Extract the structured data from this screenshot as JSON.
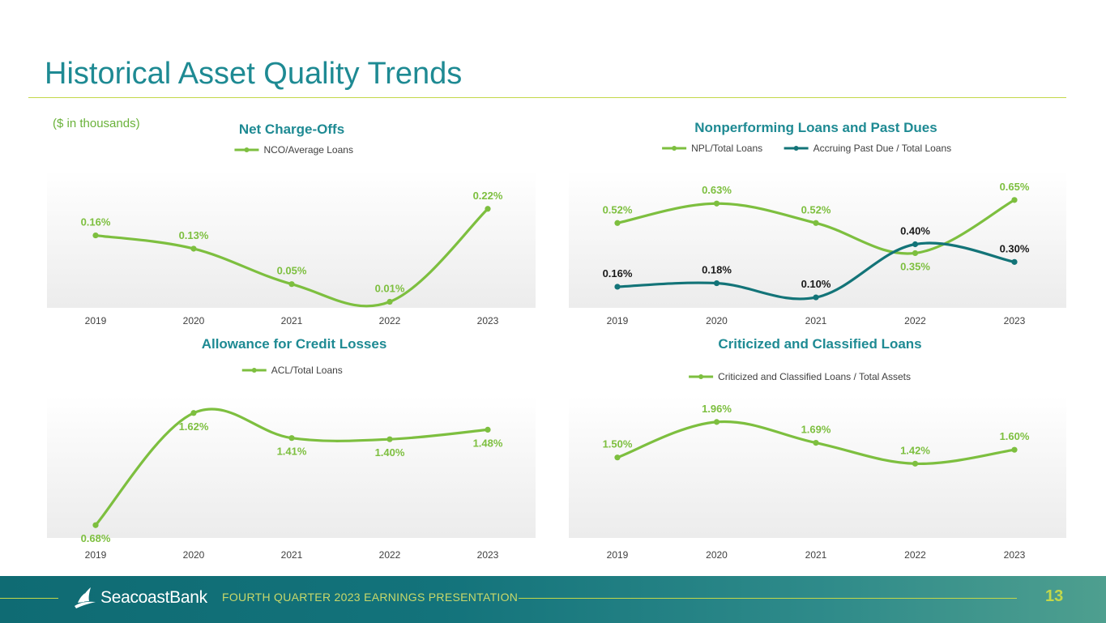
{
  "page": {
    "title": "Historical Asset Quality Trends",
    "units_note": "($ in thousands)",
    "footer_brand": "SeacoastBank",
    "footer_caption": "FOURTH QUARTER 2023 EARNINGS PRESENTATION",
    "page_number": "13"
  },
  "colors": {
    "title": "#1e8a93",
    "light_green": "#7dbf3f",
    "dark_teal": "#137478",
    "rule": "#c3d84a"
  },
  "chart_data": [
    {
      "id": "nco",
      "type": "line",
      "title": "Net Charge-Offs",
      "categories": [
        "2019",
        "2020",
        "2021",
        "2022",
        "2023"
      ],
      "ylim": [
        0.0,
        0.28
      ],
      "grid": false,
      "legend_position": "top-center",
      "series": [
        {
          "name": "NCO/Average Loans",
          "color": "#7dbf3f",
          "values": [
            0.16,
            0.13,
            0.05,
            0.01,
            0.22
          ],
          "labels": [
            "0.16%",
            "0.13%",
            "0.05%",
            "0.01%",
            "0.22%"
          ],
          "label_pos": [
            "above",
            "above",
            "above",
            "above",
            "above"
          ]
        }
      ]
    },
    {
      "id": "npl",
      "type": "line",
      "title": "Nonperforming Loans and Past Dues",
      "categories": [
        "2019",
        "2020",
        "2021",
        "2022",
        "2023"
      ],
      "ylim": [
        0.05,
        0.75
      ],
      "grid": false,
      "legend_position": "top-center",
      "series": [
        {
          "name": "NPL/Total Loans",
          "color": "#7dbf3f",
          "values": [
            0.52,
            0.63,
            0.52,
            0.35,
            0.65
          ],
          "labels": [
            "0.52%",
            "0.63%",
            "0.52%",
            "0.35%",
            "0.65%"
          ],
          "label_pos": [
            "above",
            "above",
            "above",
            "below",
            "above"
          ]
        },
        {
          "name": "Accruing Past Due / Total Loans",
          "color": "#137478",
          "values": [
            0.16,
            0.18,
            0.1,
            0.4,
            0.3
          ],
          "labels": [
            "0.16%",
            "0.18%",
            "0.10%",
            "0.40%",
            "0.30%"
          ],
          "label_pos": [
            "above",
            "above",
            "above",
            "above",
            "above"
          ]
        }
      ]
    },
    {
      "id": "acl",
      "type": "line",
      "title": "Allowance for Credit Losses",
      "categories": [
        "2019",
        "2020",
        "2021",
        "2022",
        "2023"
      ],
      "ylim": [
        0.6,
        1.7
      ],
      "grid": false,
      "legend_position": "top-center",
      "series": [
        {
          "name": "ACL/Total Loans",
          "color": "#7dbf3f",
          "values": [
            0.68,
            1.62,
            1.41,
            1.4,
            1.48
          ],
          "labels": [
            "0.68%",
            "1.62%",
            "1.41%",
            "1.40%",
            "1.48%"
          ],
          "label_pos": [
            "below",
            "below",
            "below",
            "below",
            "below"
          ]
        }
      ]
    },
    {
      "id": "ccl",
      "type": "line",
      "title": "Criticized and Classified Loans",
      "categories": [
        "2019",
        "2020",
        "2021",
        "2022",
        "2023"
      ],
      "ylim": [
        0.5,
        2.2
      ],
      "grid": false,
      "legend_position": "top-center",
      "series": [
        {
          "name": "Criticized and Classified Loans / Total Assets",
          "color": "#7dbf3f",
          "values": [
            1.5,
            1.96,
            1.69,
            1.42,
            1.6
          ],
          "labels": [
            "1.50%",
            "1.96%",
            "1.69%",
            "1.42%",
            "1.60%"
          ],
          "label_pos": [
            "above",
            "above",
            "above",
            "above",
            "above"
          ]
        }
      ]
    }
  ]
}
